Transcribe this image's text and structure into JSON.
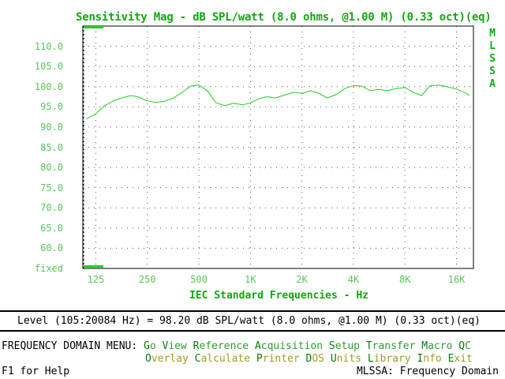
{
  "chart_data": {
    "type": "line",
    "title": "Sensitivity Mag - dB SPL/watt (8.0 ohms, @1.00 M) (0.33 oct)(eq)",
    "xlabel": "IEC Standard Frequencies - Hz",
    "ylabel": "",
    "x_scale": "log",
    "xlim": [
      105,
      20084
    ],
    "ylim": [
      55,
      115
    ],
    "y_tick_labels": [
      "110.0",
      "105.0",
      "100.0",
      "95.0",
      "90.0",
      "85.0",
      "80.0",
      "75.0",
      "70.0",
      "65.0",
      "60.0",
      "fixed"
    ],
    "y_tick_values": [
      110,
      105,
      100,
      95,
      90,
      85,
      80,
      75,
      70,
      65,
      60,
      55
    ],
    "x_tick_labels": [
      "125",
      "250",
      "500",
      "1K",
      "2K",
      "4K",
      "8K",
      "16K"
    ],
    "x_tick_values": [
      125,
      250,
      500,
      1000,
      2000,
      4000,
      8000,
      16000
    ],
    "grid": true,
    "series": [
      {
        "color": "#22cc22",
        "points": [
          [
            110,
            92.0
          ],
          [
            125,
            93.3
          ],
          [
            140,
            95.2
          ],
          [
            160,
            96.6
          ],
          [
            180,
            97.3
          ],
          [
            200,
            97.8
          ],
          [
            220,
            97.5
          ],
          [
            250,
            96.5
          ],
          [
            280,
            96.1
          ],
          [
            315,
            96.4
          ],
          [
            355,
            97.2
          ],
          [
            400,
            98.6
          ],
          [
            450,
            100.2
          ],
          [
            500,
            100.4
          ],
          [
            560,
            99.0
          ],
          [
            630,
            96.0
          ],
          [
            710,
            95.3
          ],
          [
            800,
            95.9
          ],
          [
            900,
            95.5
          ],
          [
            1000,
            96.0
          ],
          [
            1120,
            97.0
          ],
          [
            1250,
            97.5
          ],
          [
            1400,
            97.2
          ],
          [
            1600,
            98.0
          ],
          [
            1800,
            98.6
          ],
          [
            2000,
            98.3
          ],
          [
            2240,
            99.0
          ],
          [
            2500,
            98.4
          ],
          [
            2800,
            97.2
          ],
          [
            3150,
            98.0
          ],
          [
            3550,
            99.5
          ],
          [
            4000,
            100.3
          ],
          [
            4500,
            100.1
          ],
          [
            5000,
            99.0
          ],
          [
            5600,
            99.3
          ],
          [
            6300,
            99.0
          ],
          [
            7100,
            99.5
          ],
          [
            8000,
            99.8
          ],
          [
            9000,
            98.5
          ],
          [
            10000,
            97.8
          ],
          [
            11200,
            100.2
          ],
          [
            12500,
            100.4
          ],
          [
            14000,
            100.0
          ],
          [
            16000,
            99.4
          ],
          [
            18000,
            98.5
          ],
          [
            19000,
            97.8
          ]
        ]
      }
    ]
  },
  "side_label": [
    "M",
    "L",
    "S",
    "S",
    "A"
  ],
  "level_text": "Level (105:20084 Hz) = 98.20 dB SPL/watt (8.0 ohms, @1.00 M) (0.33 oct)(eq)",
  "menu": {
    "heading": "FREQUENCY DOMAIN MENU:",
    "row1": [
      {
        "hot": "G",
        "rest": "o"
      },
      {
        "hot": "V",
        "rest": "iew"
      },
      {
        "hot": "R",
        "rest": "eference"
      },
      {
        "hot": "A",
        "rest": "cquisition"
      },
      {
        "hot": "S",
        "rest": "etup"
      },
      {
        "hot": "T",
        "rest": "ransfer"
      },
      {
        "hot": "M",
        "rest": "acro"
      },
      {
        "hot": "Q",
        "rest": "C"
      }
    ],
    "row2": [
      {
        "hot": "O",
        "rest": "verlay"
      },
      {
        "hot": "C",
        "rest": "alculate"
      },
      {
        "hot": "P",
        "rest": "rinter"
      },
      {
        "hot": "D",
        "rest": "OS"
      },
      {
        "hot": "U",
        "rest": "nits"
      },
      {
        "hot": "L",
        "rest": "ibrary"
      },
      {
        "hot": "I",
        "rest": "nfo"
      },
      {
        "hot": "E",
        "rest": "xit"
      }
    ]
  },
  "footer": {
    "help": "F1 for Help",
    "status": "MLSSA: Frequency Domain"
  }
}
